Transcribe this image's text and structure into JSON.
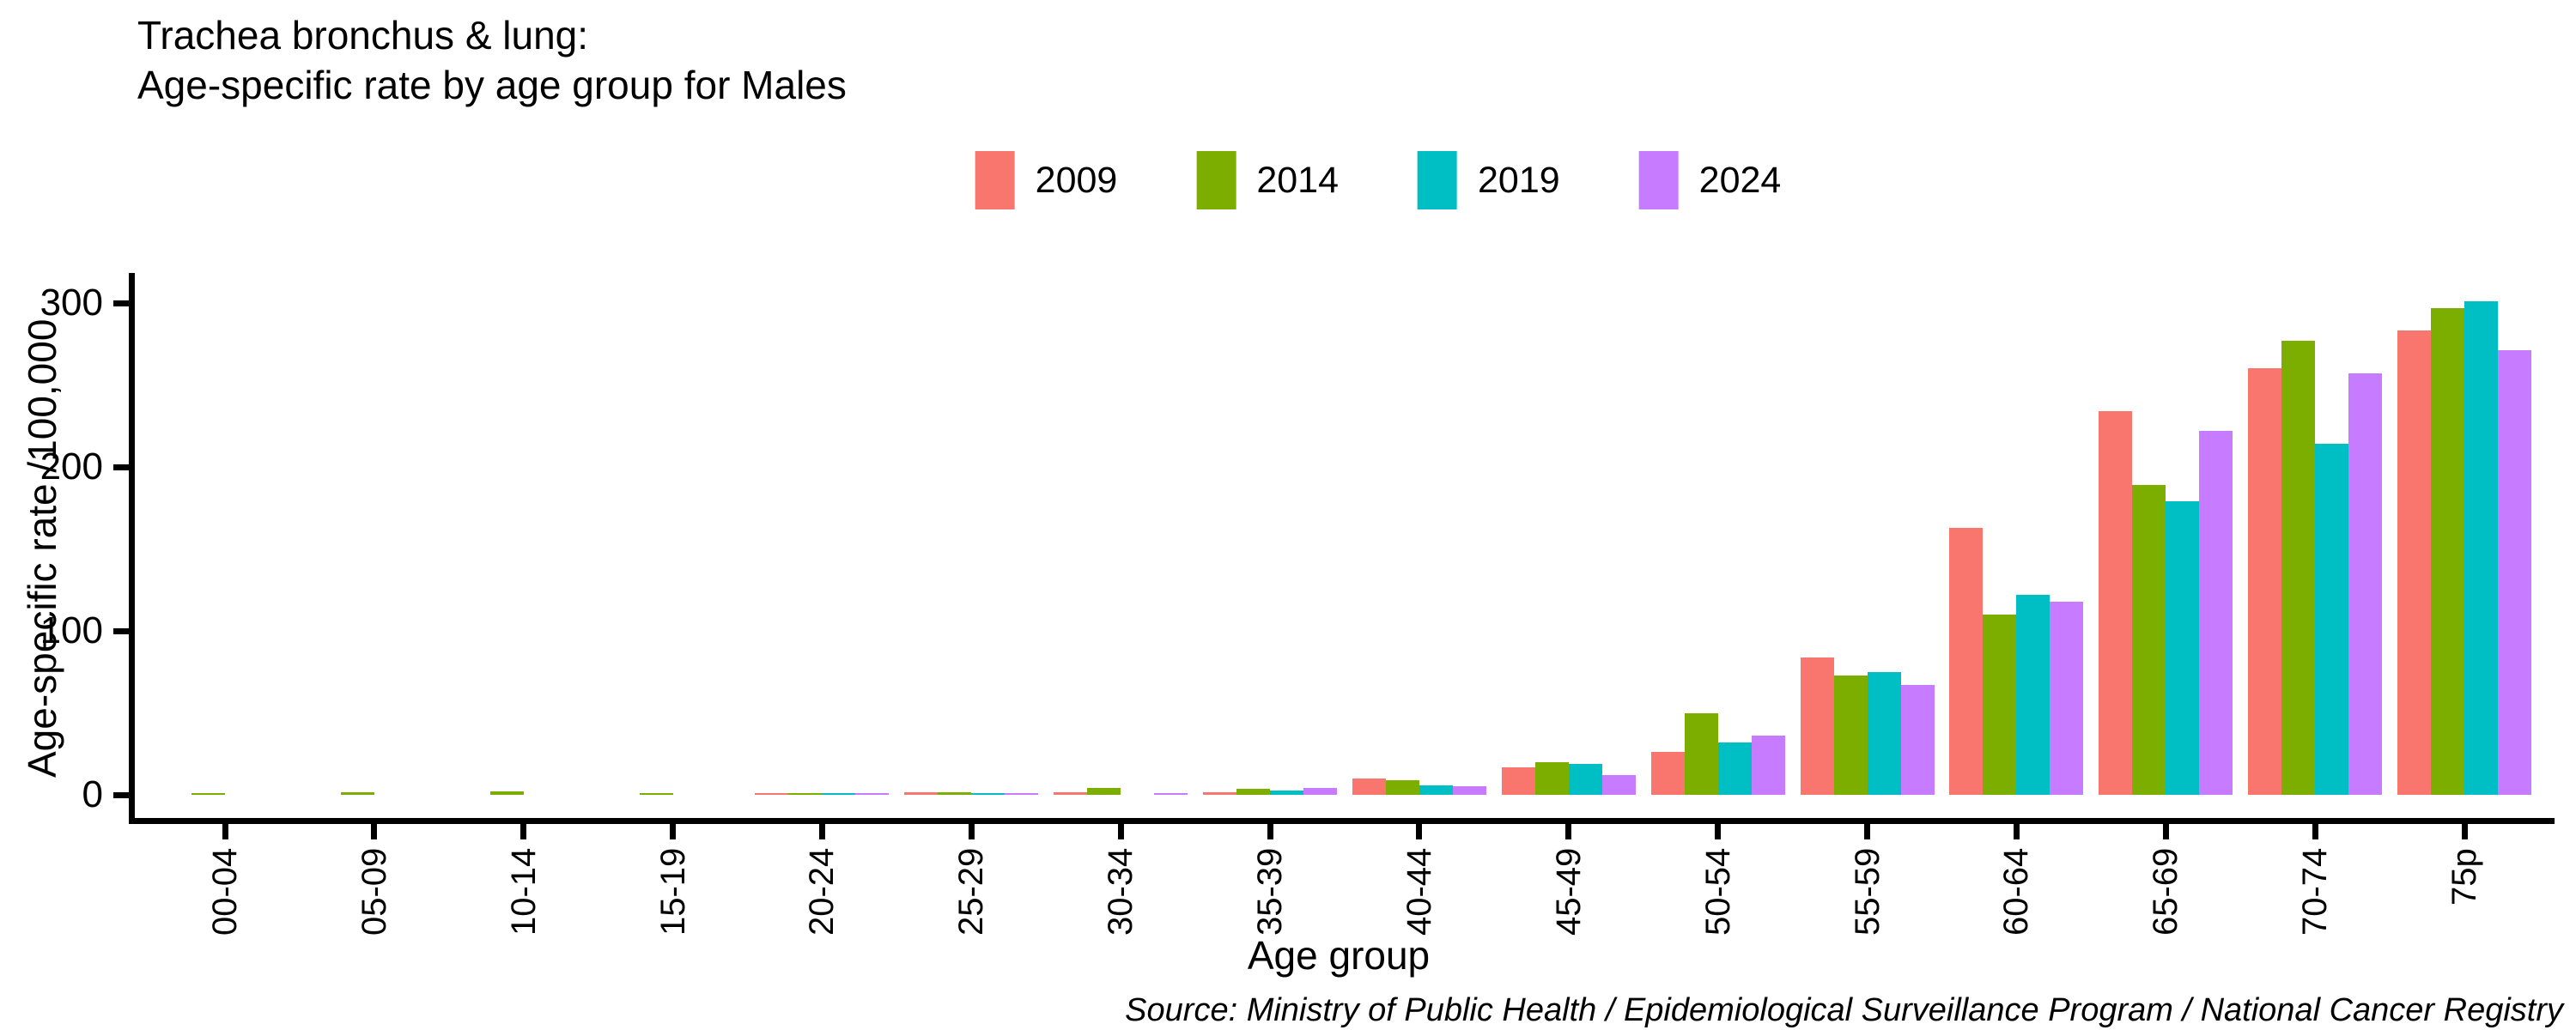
{
  "title": {
    "line1": "Trachea bronchus & lung:",
    "line2": "Age-specific rate by age group for Males"
  },
  "source": "Source: Ministry of Public Health / Epidemiological Surveillance Program / National Cancer Registry",
  "chart_data": {
    "type": "bar",
    "title": "Trachea bronchus & lung: Age-specific rate by age group for Males",
    "xlabel": "Age group",
    "ylabel": "Age-specific rate /100,000",
    "ylim": [
      0,
      318
    ],
    "yticks": [
      0,
      100,
      200,
      300
    ],
    "ytick_labels": [
      "0",
      "100",
      "200",
      "300"
    ],
    "grid": false,
    "legend_position": "top-center",
    "categories": [
      "00-04",
      "05-09",
      "10-14",
      "15-19",
      "20-24",
      "25-29",
      "30-34",
      "35-39",
      "40-44",
      "45-49",
      "50-54",
      "55-59",
      "60-64",
      "65-69",
      "70-74",
      "75p"
    ],
    "series": [
      {
        "name": "2009",
        "color": "#F8766D",
        "values": [
          0,
          0,
          0,
          0,
          0.8,
          1.4,
          1.7,
          1.5,
          10,
          17,
          26,
          84,
          163,
          234,
          260,
          283
        ]
      },
      {
        "name": "2014",
        "color": "#7CAE00",
        "values": [
          0.8,
          1.8,
          2,
          0.6,
          1,
          1.8,
          4.3,
          3.5,
          9,
          20,
          50,
          73,
          110,
          189,
          277,
          297
        ]
      },
      {
        "name": "2019",
        "color": "#00BFC4",
        "values": [
          0,
          0,
          0,
          0,
          0.8,
          1.1,
          0,
          2.5,
          6,
          19,
          32,
          75,
          122,
          179,
          214,
          301
        ]
      },
      {
        "name": "2024",
        "color": "#C77CFF",
        "values": [
          0,
          0,
          0,
          0,
          0.5,
          0.7,
          1,
          4,
          5,
          12,
          36,
          67,
          118,
          222,
          257,
          271
        ]
      }
    ]
  }
}
